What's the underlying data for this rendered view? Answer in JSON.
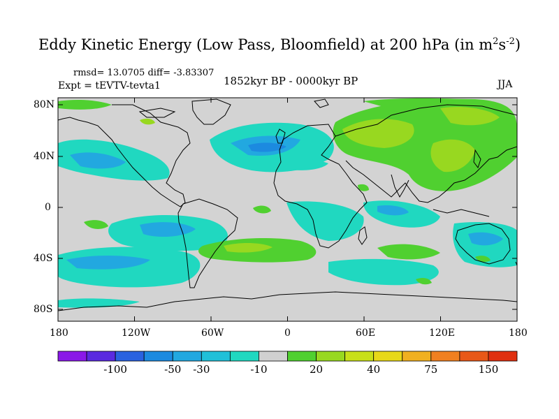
{
  "title": {
    "main": "Eddy Kinetic Energy (Low Pass, Bloomfield) at 200 hPa (in m",
    "sup1": "2",
    "mid": "s",
    "sup2": "-2",
    "end": ")"
  },
  "stats": "rmsd= 13.0705 diff= -3.83307",
  "experiment": "Expt = tEVTV-tevta1",
  "period": "1852kyr BP - 0000kyr BP",
  "season": "JJA",
  "y_ticks": [
    "80N",
    "40N",
    "0",
    "40S",
    "80S"
  ],
  "x_ticks": [
    "180",
    "120W",
    "60W",
    "0",
    "60E",
    "120E",
    "180"
  ],
  "colorbar": {
    "colors": [
      "#8a18e8",
      "#5a2ae0",
      "#2a62e0",
      "#1c8ae0",
      "#22a8e0",
      "#20c0d8",
      "#20d8c0",
      "#d0d0d0",
      "#50d030",
      "#98d820",
      "#c8e018",
      "#e8d818",
      "#f0b020",
      "#f08020",
      "#e85818",
      "#e03010"
    ],
    "labels": [
      "-100",
      "-50",
      "-30",
      "-10",
      "20",
      "40",
      "75",
      "150"
    ],
    "label_levels": [
      -100,
      -50,
      -30,
      -10,
      20,
      40,
      75,
      150
    ]
  },
  "map_colors": {
    "ocean_gray": "#d3d3d3",
    "light_green": "#98d820",
    "yellow_green": "#c8e018",
    "green": "#50d030",
    "teal": "#20d8c0",
    "cyan": "#20c0d8",
    "light_blue": "#22a8e0"
  }
}
